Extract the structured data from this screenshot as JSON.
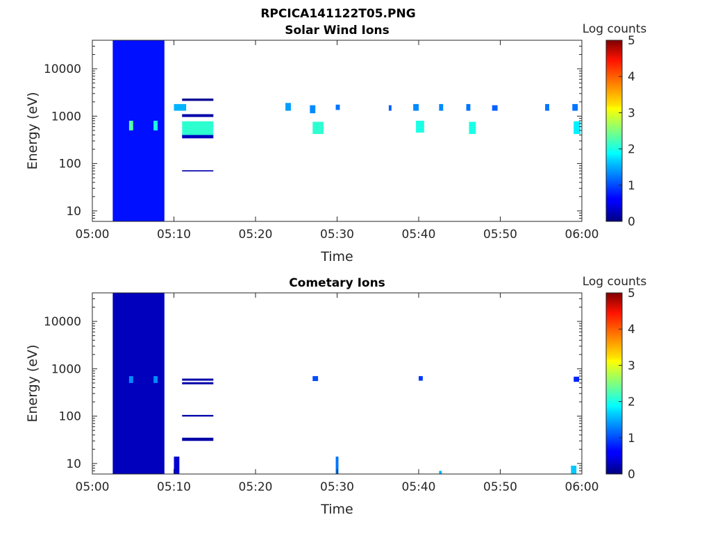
{
  "figure": {
    "title": "RPCICA141122T05.PNG"
  },
  "colorbar": {
    "label": "Log counts",
    "ticks": [
      "0",
      "1",
      "2",
      "3",
      "4",
      "5"
    ],
    "range": [
      0,
      5
    ],
    "colormap": "jet"
  },
  "chart_data": [
    {
      "type": "heatmap",
      "title": "Solar Wind Ions",
      "xlabel": "Time",
      "ylabel": "Energy (eV)",
      "xlim": [
        "05:00",
        "06:00"
      ],
      "xticks": [
        "05:00",
        "05:10",
        "05:20",
        "05:30",
        "05:40",
        "05:50",
        "06:00"
      ],
      "ylim": [
        6,
        40000
      ],
      "yscale": "log",
      "yticks": [
        10,
        100,
        1000,
        10000
      ],
      "ytick_labels": [
        "10",
        "100",
        "1000",
        "10000"
      ],
      "zlim": [
        0,
        5
      ],
      "background": "white (no counts)",
      "regions": [
        {
          "t": [
            "05:02:30",
            "05:08:50"
          ],
          "e": [
            6,
            40000
          ],
          "log_counts": 0.7,
          "note": "broad band across all energies"
        },
        {
          "t": [
            "05:04:30",
            "05:05:00"
          ],
          "e": [
            500,
            800
          ],
          "log_counts": 2.3
        },
        {
          "t": [
            "05:07:30",
            "05:08:00"
          ],
          "e": [
            500,
            800
          ],
          "log_counts": 2.0
        },
        {
          "t": [
            "05:11:00",
            "05:14:50"
          ],
          "e": [
            380,
            780
          ],
          "log_counts": 2.1
        },
        {
          "t": [
            "05:11:00",
            "05:14:50"
          ],
          "e": [
            340,
            400
          ],
          "log_counts": 0.3
        },
        {
          "t": [
            "05:11:00",
            "05:14:50"
          ],
          "e": [
            960,
            1100
          ],
          "log_counts": 0.2
        },
        {
          "t": [
            "05:11:00",
            "05:14:50"
          ],
          "e": [
            2100,
            2350
          ],
          "log_counts": 0.1
        },
        {
          "t": [
            "05:11:00",
            "05:14:50"
          ],
          "e": [
            68,
            72
          ],
          "log_counts": 0.2
        },
        {
          "t": [
            "05:10:00",
            "05:11:30"
          ],
          "e": [
            1300,
            1800
          ],
          "log_counts": 1.5
        },
        {
          "t": [
            "05:27:00",
            "05:28:20"
          ],
          "e": [
            420,
            760
          ],
          "log_counts": 2.1
        },
        {
          "t": [
            "05:23:40",
            "05:24:20"
          ],
          "e": [
            1300,
            1900
          ],
          "log_counts": 1.4
        },
        {
          "t": [
            "05:26:40",
            "05:27:20"
          ],
          "e": [
            1150,
            1700
          ],
          "log_counts": 1.3
        },
        {
          "t": [
            "05:39:40",
            "05:40:40"
          ],
          "e": [
            450,
            800
          ],
          "log_counts": 2.0
        },
        {
          "t": [
            "05:46:10",
            "05:47:00"
          ],
          "e": [
            420,
            760
          ],
          "log_counts": 2.0
        },
        {
          "t": [
            "05:59:00",
            "05:59:50"
          ],
          "e": [
            420,
            780
          ],
          "log_counts": 1.8
        },
        {
          "t": [
            "05:29:50",
            "05:30:20"
          ],
          "e": [
            1350,
            1750
          ],
          "log_counts": 1.2
        },
        {
          "t": [
            "05:36:20",
            "05:36:40"
          ],
          "e": [
            1300,
            1700
          ],
          "log_counts": 1.1
        },
        {
          "t": [
            "05:39:20",
            "05:40:00"
          ],
          "e": [
            1300,
            1800
          ],
          "log_counts": 1.3
        },
        {
          "t": [
            "05:42:30",
            "05:43:00"
          ],
          "e": [
            1300,
            1800
          ],
          "log_counts": 1.3
        },
        {
          "t": [
            "05:45:50",
            "05:46:20"
          ],
          "e": [
            1300,
            1800
          ],
          "log_counts": 1.2
        },
        {
          "t": [
            "05:49:00",
            "05:49:40"
          ],
          "e": [
            1300,
            1700
          ],
          "log_counts": 1.1
        },
        {
          "t": [
            "05:55:30",
            "05:56:00"
          ],
          "e": [
            1300,
            1800
          ],
          "log_counts": 1.2
        },
        {
          "t": [
            "05:58:50",
            "05:59:30"
          ],
          "e": [
            1300,
            1800
          ],
          "log_counts": 1.2
        }
      ]
    },
    {
      "type": "heatmap",
      "title": "Cometary Ions",
      "xlabel": "Time",
      "ylabel": "Energy (eV)",
      "xlim": [
        "05:00",
        "06:00"
      ],
      "xticks": [
        "05:00",
        "05:10",
        "05:20",
        "05:30",
        "05:40",
        "05:50",
        "06:00"
      ],
      "ylim": [
        6,
        40000
      ],
      "yscale": "log",
      "yticks": [
        10,
        100,
        1000,
        10000
      ],
      "ytick_labels": [
        "10",
        "100",
        "1000",
        "10000"
      ],
      "zlim": [
        0,
        5
      ],
      "background": "white (no counts)",
      "regions": [
        {
          "t": [
            "05:02:30",
            "05:08:50"
          ],
          "e": [
            6,
            40000
          ],
          "log_counts": 0.3,
          "note": "broad band, brighter below 1000 eV"
        },
        {
          "t": [
            "05:04:30",
            "05:05:00"
          ],
          "e": [
            500,
            700
          ],
          "log_counts": 1.3
        },
        {
          "t": [
            "05:07:30",
            "05:08:00"
          ],
          "e": [
            500,
            700
          ],
          "log_counts": 1.3
        },
        {
          "t": [
            "05:11:00",
            "05:14:50"
          ],
          "e": [
            560,
            620
          ],
          "log_counts": 0.2
        },
        {
          "t": [
            "05:11:00",
            "05:14:50"
          ],
          "e": [
            470,
            520
          ],
          "log_counts": 0.2
        },
        {
          "t": [
            "05:11:00",
            "05:14:50"
          ],
          "e": [
            98,
            106
          ],
          "log_counts": 0.2
        },
        {
          "t": [
            "05:11:00",
            "05:14:50"
          ],
          "e": [
            30,
            35
          ],
          "log_counts": 0.2
        },
        {
          "t": [
            "05:27:00",
            "05:27:40"
          ],
          "e": [
            550,
            700
          ],
          "log_counts": 1.0
        },
        {
          "t": [
            "05:40:00",
            "05:40:30"
          ],
          "e": [
            560,
            700
          ],
          "log_counts": 0.9
        },
        {
          "t": [
            "05:59:00",
            "05:59:40"
          ],
          "e": [
            530,
            680
          ],
          "log_counts": 0.8
        },
        {
          "t": [
            "05:10:00",
            "05:10:40"
          ],
          "e": [
            6,
            14
          ],
          "log_counts": 0.4
        },
        {
          "t": [
            "05:29:50",
            "05:30:10"
          ],
          "e": [
            6,
            14
          ],
          "log_counts": 1.2
        },
        {
          "t": [
            "05:42:30",
            "05:42:50"
          ],
          "e": [
            6,
            7
          ],
          "log_counts": 1.5
        },
        {
          "t": [
            "05:58:40",
            "05:59:20"
          ],
          "e": [
            6,
            9
          ],
          "log_counts": 1.6
        }
      ]
    }
  ]
}
